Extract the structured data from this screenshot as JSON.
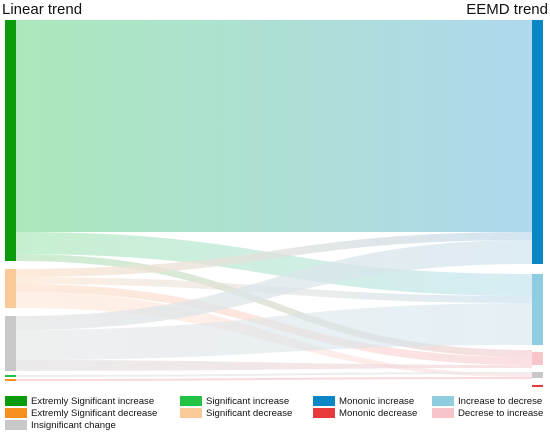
{
  "figure": {
    "left_title": "Linear trend",
    "right_title": "EEMD trend"
  },
  "legend": [
    {
      "label": "Extremly Significant increase",
      "color": "#0a9a0a"
    },
    {
      "label": "Significant increase",
      "color": "#22c244"
    },
    {
      "label": "Mononic increase",
      "color": "#0a86c4"
    },
    {
      "label": "Increase to decrese",
      "color": "#8ecde0"
    },
    {
      "label": "Extremly Significant decrease",
      "color": "#f7901e"
    },
    {
      "label": "Significant decrease",
      "color": "#fac998"
    },
    {
      "label": "Mononic decrease",
      "color": "#e83a3a"
    },
    {
      "label": "Decrese to increase",
      "color": "#f7c5c9"
    },
    {
      "label": "Insignificant change",
      "color": "#c8c8c8"
    }
  ],
  "nodes": {
    "left": [
      {
        "id": "esi",
        "label": "Extremly Significant increase",
        "color": "#0a9a0a"
      },
      {
        "id": "sd",
        "label": "Significant decrease",
        "color": "#fac998"
      },
      {
        "id": "ic",
        "label": "Insignificant change",
        "color": "#c8c8c8"
      },
      {
        "id": "si",
        "label": "Significant increase",
        "color": "#22c244"
      },
      {
        "id": "esd",
        "label": "Extremly Significant decrease",
        "color": "#f7901e"
      }
    ],
    "right": [
      {
        "id": "mi",
        "label": "Mononic increase",
        "color": "#0a86c4"
      },
      {
        "id": "itd",
        "label": "Increase to decrese",
        "color": "#8ecde0"
      },
      {
        "id": "dti",
        "label": "Decrese to increase",
        "color": "#f7c5c9"
      },
      {
        "id": "md",
        "label": "Mononic decrease",
        "color": "#e83a3a"
      }
    ]
  }
}
